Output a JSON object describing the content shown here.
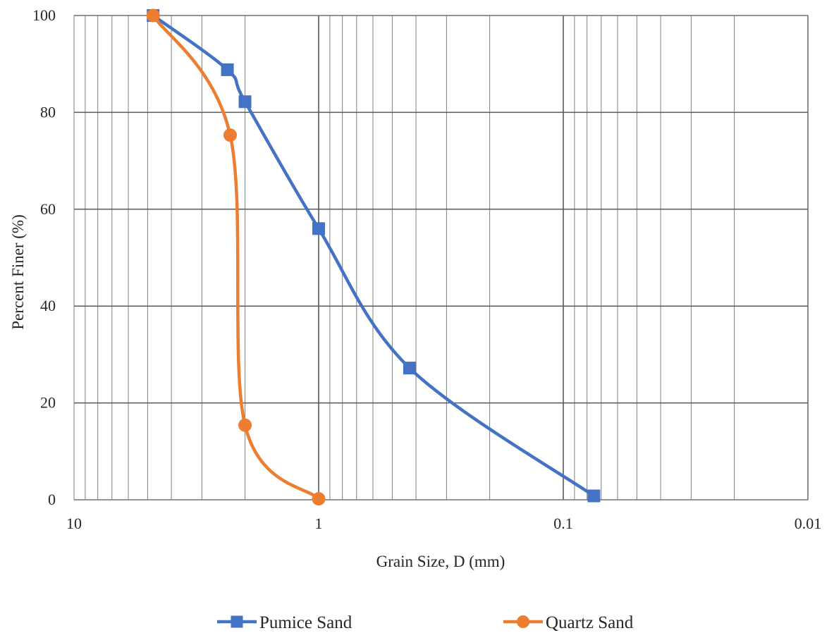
{
  "chart_data": {
    "type": "line",
    "xscale": "log",
    "x_reversed": true,
    "xlim": [
      10,
      0.01
    ],
    "ylim": [
      0,
      100
    ],
    "y_ticks": [
      0,
      20,
      40,
      60,
      80,
      100
    ],
    "x_tick_labels": [
      "10",
      "1",
      "0.1",
      "0.01"
    ],
    "y_tick_labels": [
      "0",
      "20",
      "40",
      "60",
      "80",
      "100"
    ],
    "xlabel": "Grain Size, D (mm)",
    "ylabel": "Percent Finer (%)",
    "grid": true,
    "legend_position": "bottom",
    "series": [
      {
        "name": "Pumice Sand",
        "color": "#4472C4",
        "marker": "square",
        "x": [
          4.75,
          2.36,
          2.0,
          1.0,
          0.425,
          0.075
        ],
        "y": [
          100,
          88.8,
          82.2,
          56.0,
          27.2,
          0.8
        ]
      },
      {
        "name": "Quartz Sand",
        "color": "#ED7D31",
        "marker": "circle",
        "x": [
          4.75,
          2.3,
          2.0,
          1.0
        ],
        "y": [
          100,
          75.3,
          15.4,
          0.2
        ]
      }
    ]
  }
}
